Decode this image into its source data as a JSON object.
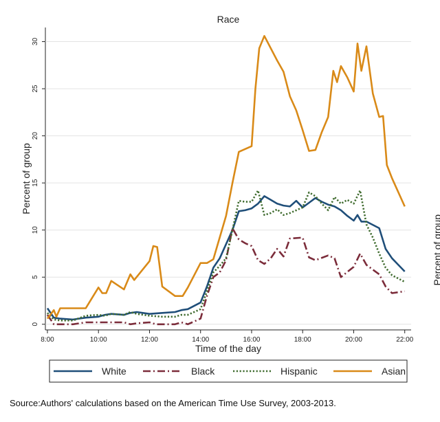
{
  "chart_data": {
    "type": "line",
    "title": "Race",
    "xlabel": "Time of the day",
    "ylabel": "Percent of group",
    "right_ylabel_fragment": "Percent of group",
    "xlim": [
      7.92,
      22.25
    ],
    "ylim": [
      -0.6,
      31.5
    ],
    "xticks": [
      8,
      10,
      12,
      14,
      16,
      18,
      20,
      22
    ],
    "xtick_labels": [
      "8:00",
      "10:00",
      "12:00",
      "14:00",
      "16:00",
      "18:00",
      "20:00",
      "22:00"
    ],
    "yticks": [
      0,
      5,
      10,
      15,
      20,
      25,
      30
    ],
    "ytick_labels": [
      "0",
      "5",
      "10",
      "15",
      "20",
      "25",
      "30"
    ],
    "legend_position": "bottom",
    "series": [
      {
        "name": "White",
        "color": "#1f4e79",
        "dash": "solid",
        "points": [
          [
            8.0,
            1.7
          ],
          [
            8.25,
            0.7
          ],
          [
            8.5,
            0.6
          ],
          [
            9.0,
            0.5
          ],
          [
            9.5,
            0.7
          ],
          [
            10.0,
            0.8
          ],
          [
            10.25,
            1.0
          ],
          [
            10.5,
            1.1
          ],
          [
            11.0,
            1.0
          ],
          [
            11.25,
            1.2
          ],
          [
            11.5,
            1.3
          ],
          [
            12.0,
            1.1
          ],
          [
            12.5,
            1.2
          ],
          [
            13.0,
            1.3
          ],
          [
            13.25,
            1.5
          ],
          [
            13.5,
            1.6
          ],
          [
            14.0,
            2.3
          ],
          [
            14.25,
            4.0
          ],
          [
            14.5,
            6.0
          ],
          [
            14.75,
            7.0
          ],
          [
            15.0,
            8.5
          ],
          [
            15.25,
            10.0
          ],
          [
            15.5,
            12.0
          ],
          [
            15.75,
            12.1
          ],
          [
            16.0,
            12.3
          ],
          [
            16.25,
            12.8
          ],
          [
            16.5,
            13.6
          ],
          [
            16.75,
            13.2
          ],
          [
            17.0,
            12.8
          ],
          [
            17.25,
            12.6
          ],
          [
            17.5,
            12.5
          ],
          [
            17.75,
            13.1
          ],
          [
            18.0,
            12.4
          ],
          [
            18.25,
            12.9
          ],
          [
            18.5,
            13.4
          ],
          [
            18.75,
            13.0
          ],
          [
            19.0,
            12.7
          ],
          [
            19.25,
            12.5
          ],
          [
            19.5,
            12.1
          ],
          [
            19.75,
            11.5
          ],
          [
            20.0,
            11.0
          ],
          [
            20.15,
            11.6
          ],
          [
            20.3,
            10.9
          ],
          [
            20.5,
            10.9
          ],
          [
            21.0,
            10.2
          ],
          [
            21.25,
            8.0
          ],
          [
            21.5,
            7.0
          ],
          [
            21.75,
            6.3
          ],
          [
            22.0,
            5.6
          ]
        ]
      },
      {
        "name": "Black",
        "color": "#7b2c3a",
        "dash": "longdashdot",
        "points": [
          [
            8.0,
            1.0
          ],
          [
            8.25,
            0.0
          ],
          [
            8.5,
            0.0
          ],
          [
            9.0,
            0.0
          ],
          [
            9.5,
            0.2
          ],
          [
            10.0,
            0.2
          ],
          [
            10.5,
            0.2
          ],
          [
            11.0,
            0.2
          ],
          [
            11.25,
            0.0
          ],
          [
            11.5,
            0.1
          ],
          [
            12.0,
            0.2
          ],
          [
            12.25,
            0.0
          ],
          [
            12.5,
            0.0
          ],
          [
            13.0,
            0.0
          ],
          [
            13.25,
            0.2
          ],
          [
            13.5,
            0.0
          ],
          [
            14.0,
            0.6
          ],
          [
            14.25,
            3.0
          ],
          [
            14.5,
            5.0
          ],
          [
            14.75,
            5.5
          ],
          [
            15.0,
            6.8
          ],
          [
            15.25,
            10.2
          ],
          [
            15.5,
            9.0
          ],
          [
            15.75,
            8.6
          ],
          [
            16.0,
            8.3
          ],
          [
            16.25,
            6.8
          ],
          [
            16.5,
            6.4
          ],
          [
            16.75,
            7.0
          ],
          [
            17.0,
            8.0
          ],
          [
            17.25,
            7.2
          ],
          [
            17.5,
            9.1
          ],
          [
            18.0,
            9.2
          ],
          [
            18.25,
            7.1
          ],
          [
            18.5,
            6.8
          ],
          [
            19.0,
            7.3
          ],
          [
            19.25,
            7.0
          ],
          [
            19.5,
            5.0
          ],
          [
            20.0,
            6.1
          ],
          [
            20.25,
            7.5
          ],
          [
            20.5,
            6.3
          ],
          [
            20.75,
            5.8
          ],
          [
            21.0,
            5.3
          ],
          [
            21.25,
            4.0
          ],
          [
            21.5,
            3.3
          ],
          [
            22.0,
            3.5
          ]
        ]
      },
      {
        "name": "Hispanic",
        "color": "#3f6b2e",
        "dash": "dotted",
        "points": [
          [
            8.0,
            1.2
          ],
          [
            8.25,
            0.5
          ],
          [
            8.5,
            0.4
          ],
          [
            9.0,
            0.4
          ],
          [
            9.5,
            0.9
          ],
          [
            10.0,
            1.0
          ],
          [
            10.25,
            0.9
          ],
          [
            10.5,
            1.1
          ],
          [
            11.0,
            1.0
          ],
          [
            11.25,
            1.3
          ],
          [
            11.5,
            1.1
          ],
          [
            12.0,
            0.9
          ],
          [
            12.5,
            0.8
          ],
          [
            13.0,
            0.8
          ],
          [
            13.25,
            1.0
          ],
          [
            13.5,
            1.0
          ],
          [
            14.0,
            1.6
          ],
          [
            14.25,
            3.5
          ],
          [
            14.5,
            5.5
          ],
          [
            14.75,
            6.2
          ],
          [
            15.0,
            7.0
          ],
          [
            15.25,
            10.0
          ],
          [
            15.5,
            13.1
          ],
          [
            15.75,
            13.0
          ],
          [
            16.0,
            13.0
          ],
          [
            16.25,
            14.2
          ],
          [
            16.5,
            11.6
          ],
          [
            16.75,
            11.8
          ],
          [
            17.0,
            12.2
          ],
          [
            17.25,
            11.6
          ],
          [
            17.5,
            11.8
          ],
          [
            18.0,
            12.4
          ],
          [
            18.25,
            14.0
          ],
          [
            18.5,
            13.6
          ],
          [
            18.75,
            12.8
          ],
          [
            19.0,
            12.1
          ],
          [
            19.25,
            13.5
          ],
          [
            19.5,
            12.8
          ],
          [
            19.75,
            13.2
          ],
          [
            20.0,
            12.8
          ],
          [
            20.25,
            14.2
          ],
          [
            20.5,
            10.6
          ],
          [
            20.75,
            9.2
          ],
          [
            21.0,
            7.5
          ],
          [
            21.25,
            6.0
          ],
          [
            21.5,
            5.2
          ],
          [
            22.0,
            4.5
          ]
        ]
      },
      {
        "name": "Asian",
        "color": "#d98a18",
        "dash": "solid",
        "points": [
          [
            8.0,
            0.6
          ],
          [
            8.25,
            1.5
          ],
          [
            8.35,
            0.8
          ],
          [
            8.5,
            1.7
          ],
          [
            9.0,
            1.7
          ],
          [
            9.5,
            1.7
          ],
          [
            10.0,
            3.9
          ],
          [
            10.15,
            3.3
          ],
          [
            10.3,
            3.3
          ],
          [
            10.5,
            4.6
          ],
          [
            11.0,
            3.7
          ],
          [
            11.25,
            5.3
          ],
          [
            11.4,
            4.7
          ],
          [
            12.0,
            6.7
          ],
          [
            12.15,
            8.3
          ],
          [
            12.3,
            8.2
          ],
          [
            12.5,
            4.0
          ],
          [
            13.0,
            3.0
          ],
          [
            13.3,
            3.0
          ],
          [
            13.5,
            3.9
          ],
          [
            14.0,
            6.5
          ],
          [
            14.25,
            6.5
          ],
          [
            14.5,
            6.9
          ],
          [
            15.0,
            11.5
          ],
          [
            15.25,
            15.0
          ],
          [
            15.5,
            18.3
          ],
          [
            16.0,
            18.9
          ],
          [
            16.15,
            25.0
          ],
          [
            16.3,
            29.3
          ],
          [
            16.5,
            30.6
          ],
          [
            17.0,
            28.0
          ],
          [
            17.25,
            26.8
          ],
          [
            17.5,
            24.2
          ],
          [
            17.75,
            22.7
          ],
          [
            18.0,
            20.6
          ],
          [
            18.25,
            18.4
          ],
          [
            18.5,
            18.5
          ],
          [
            18.75,
            20.4
          ],
          [
            19.0,
            22.0
          ],
          [
            19.2,
            26.9
          ],
          [
            19.35,
            25.7
          ],
          [
            19.5,
            27.4
          ],
          [
            19.75,
            26.2
          ],
          [
            20.0,
            24.7
          ],
          [
            20.15,
            29.8
          ],
          [
            20.3,
            26.9
          ],
          [
            20.5,
            29.5
          ],
          [
            20.75,
            24.5
          ],
          [
            21.0,
            22.0
          ],
          [
            21.15,
            22.1
          ],
          [
            21.3,
            16.9
          ],
          [
            21.5,
            15.5
          ],
          [
            22.0,
            12.5
          ]
        ]
      }
    ],
    "source": "Source:Authors' calculations based on the American Time Use Survey, 2003-2013."
  }
}
